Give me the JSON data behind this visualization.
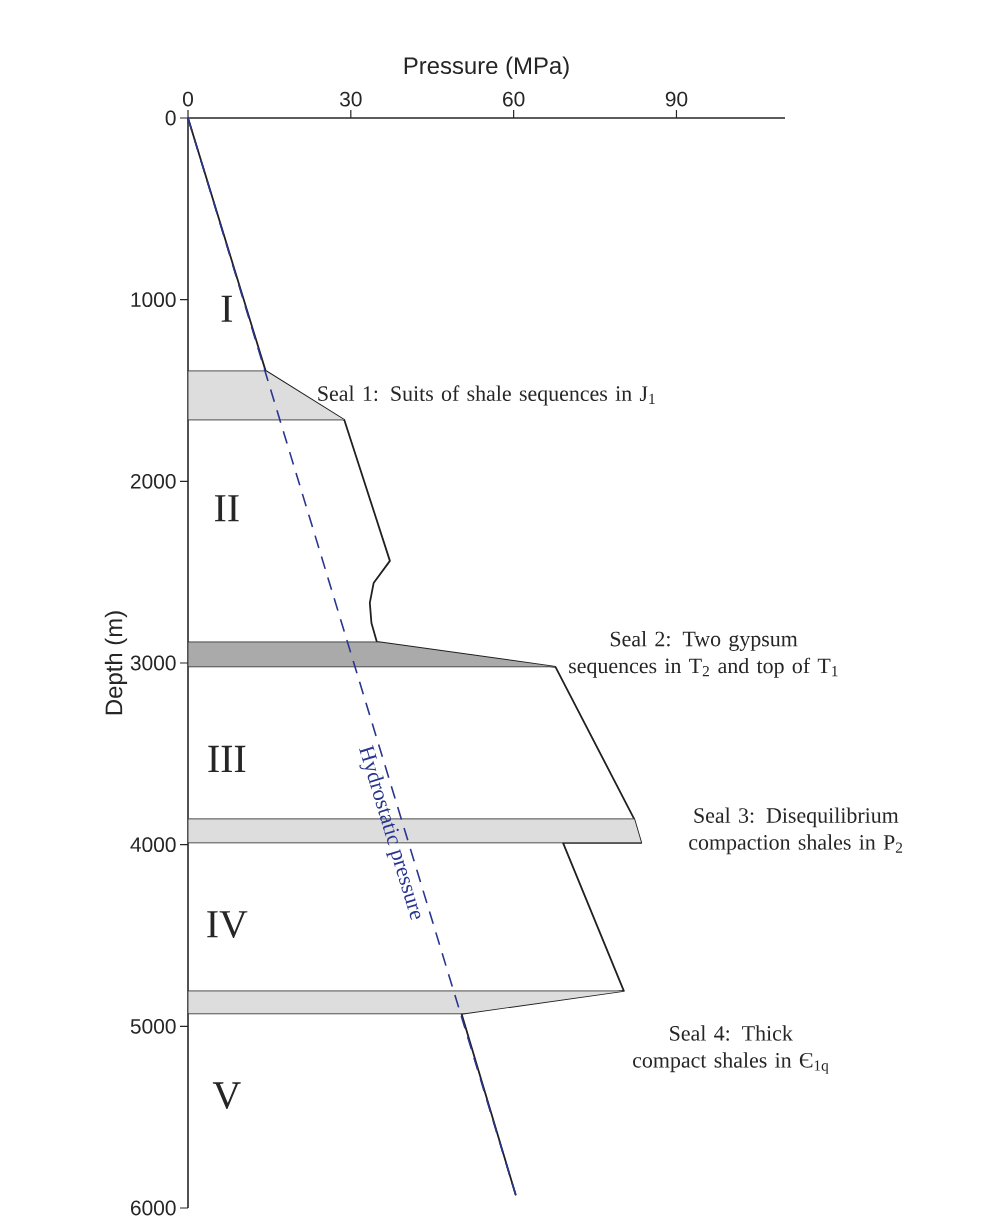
{
  "chart_data": {
    "type": "line",
    "xlabel": "Pressure (MPa)",
    "ylabel": "Depth (m)",
    "xlim": [
      0,
      110
    ],
    "ylim": [
      6000,
      0
    ],
    "xticks": [
      0,
      30,
      60,
      90
    ],
    "yticks": [
      0,
      1000,
      2000,
      3000,
      4000,
      5000,
      6000
    ],
    "marker": "none",
    "grid": false,
    "series": [
      {
        "color": "#231f20",
        "line_style": "solid",
        "x": [
          0,
          14.3,
          28.8,
          37.2,
          34.2,
          33.5,
          33.8,
          34.8,
          67.7,
          82.2,
          83.5,
          69.1,
          80.3,
          50.4,
          60.4
        ],
        "values": [
          0,
          1392,
          1662,
          2438,
          2560,
          2669,
          2780,
          2884,
          3021,
          3858,
          3990,
          3990,
          4805,
          4931,
          5930
        ]
      },
      {
        "name": "Hydrostatic pressure",
        "color": "#2a3590",
        "line_style": "dashed",
        "x": [
          0,
          60.4
        ],
        "values": [
          0,
          5930
        ]
      }
    ],
    "bands": [
      {
        "axis": "y",
        "from": 1392,
        "to": 1662,
        "label": "Seal  1: Suits of shale sequences in J$_{1}$",
        "color": "#dddddd"
      },
      {
        "axis": "y",
        "from": 2884,
        "to": 3021,
        "label": "Seal  2: Two gypsum sequences in T$_{2}$ and top of T$_{1}$",
        "color": "#aaaaaa"
      },
      {
        "axis": "y",
        "from": 3858,
        "to": 3990,
        "label": "Seal  3: Disequilibrium compaction shales in P$_{2}$",
        "color": "#dddddd"
      },
      {
        "axis": "y",
        "from": 4805,
        "to": 4931,
        "label": "Seal  4: Thick compact shales in Є$_{1q}$",
        "color": "#dddddd"
      }
    ],
    "annotations": [
      "I",
      "II",
      "III",
      "IV",
      "V"
    ]
  }
}
